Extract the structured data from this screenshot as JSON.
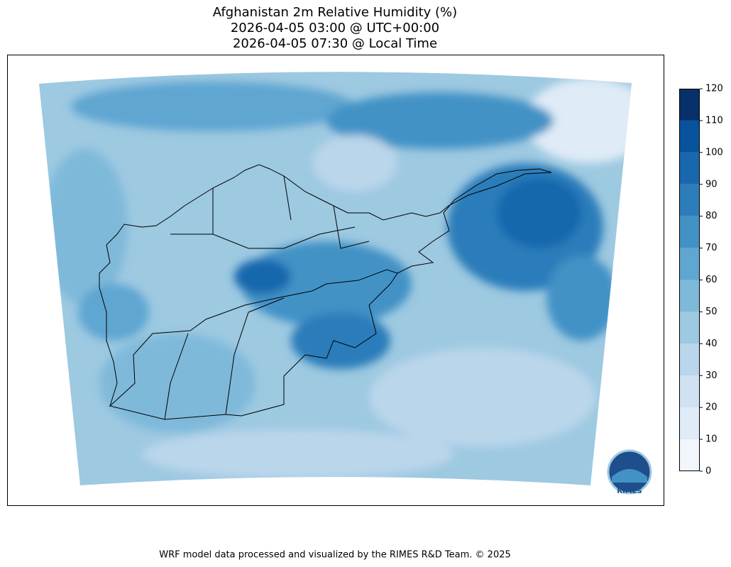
{
  "header": {
    "title_lines": [
      "Afghanistan 2m Relative Humidity (%)",
      "2026-04-05 03:00 @ UTC+00:00",
      "2026-04-05 07:30 @ Local Time"
    ]
  },
  "colorbar": {
    "ticks": [
      0,
      10,
      20,
      30,
      40,
      50,
      60,
      70,
      80,
      90,
      100,
      110,
      120
    ],
    "colors": [
      "#f0f6fc",
      "#dfebf7",
      "#d0e1f2",
      "#bad6eb",
      "#9dc9e1",
      "#7fb9da",
      "#5fa6d1",
      "#4292c6",
      "#2c7dba",
      "#1967ad",
      "#09529d",
      "#08306b"
    ]
  },
  "logo": {
    "text": "RIMES"
  },
  "footer": {
    "text": "WRF model data processed and visualized by the RIMES R&D Team. © 2025"
  }
}
